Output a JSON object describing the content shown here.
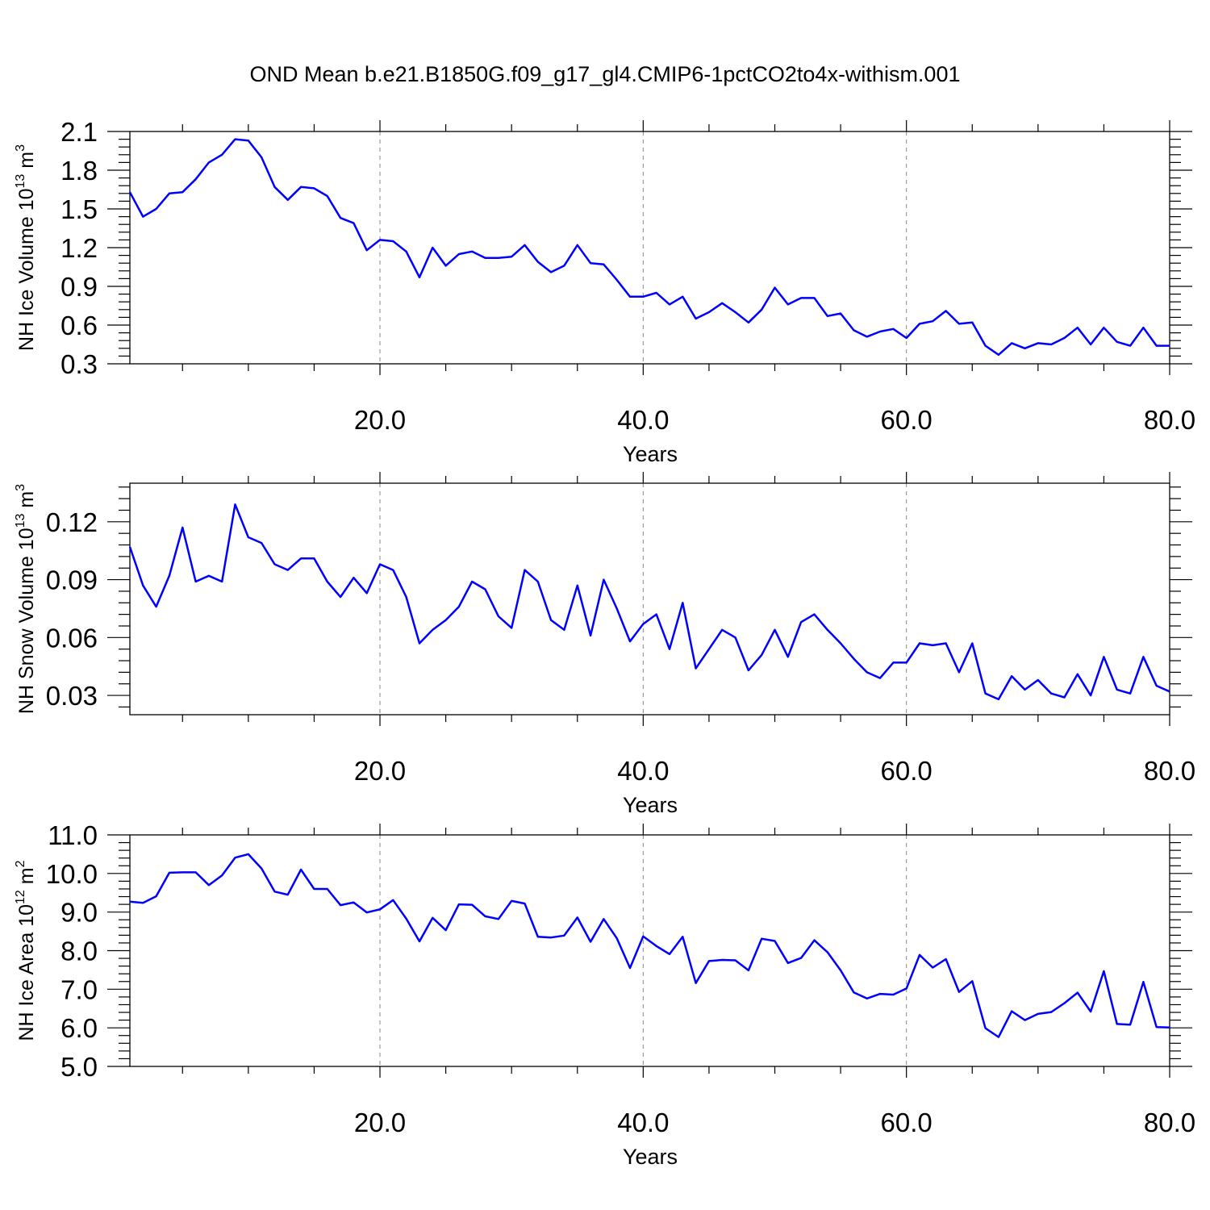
{
  "title": "OND Mean b.e21.B1850G.f09_g17_gl4.CMIP6-1pctCO2to4x-withism.001",
  "colors": {
    "series": "#0000ff",
    "grid": "#888888",
    "axis": "#000000"
  },
  "chart_data": [
    {
      "type": "line",
      "ylabel": {
        "prefix": "NH Ice Volume 10",
        "exp": "13",
        "unit": " m",
        "unit_exp": "3"
      },
      "xlabel": "Years",
      "xlim": [
        1,
        80
      ],
      "ylim": [
        0.3,
        2.1
      ],
      "x_ticks": [
        "20.0",
        "40.0",
        "60.0",
        "80.0"
      ],
      "y_ticks": [
        "0.3",
        "0.6",
        "0.9",
        "1.2",
        "1.5",
        "1.8",
        "2.1"
      ],
      "grid_x": true,
      "x": [
        1,
        2,
        3,
        4,
        5,
        6,
        7,
        8,
        9,
        10,
        11,
        12,
        13,
        14,
        15,
        16,
        17,
        18,
        19,
        20,
        21,
        22,
        23,
        24,
        25,
        26,
        27,
        28,
        29,
        30,
        31,
        32,
        33,
        34,
        35,
        36,
        37,
        38,
        39,
        40,
        41,
        42,
        43,
        44,
        45,
        46,
        47,
        48,
        49,
        50,
        51,
        52,
        53,
        54,
        55,
        56,
        57,
        58,
        59,
        60,
        61,
        62,
        63,
        64,
        65,
        66,
        67,
        68,
        69,
        70,
        71,
        72,
        73,
        74,
        75,
        76,
        77,
        78,
        79,
        80
      ],
      "values": [
        1.63,
        1.44,
        1.5,
        1.62,
        1.63,
        1.73,
        1.86,
        1.92,
        2.04,
        2.03,
        1.9,
        1.67,
        1.57,
        1.67,
        1.66,
        1.6,
        1.43,
        1.39,
        1.18,
        1.26,
        1.25,
        1.17,
        0.97,
        1.2,
        1.06,
        1.15,
        1.17,
        1.12,
        1.12,
        1.13,
        1.22,
        1.09,
        1.01,
        1.06,
        1.22,
        1.08,
        1.07,
        0.95,
        0.82,
        0.82,
        0.85,
        0.76,
        0.82,
        0.65,
        0.7,
        0.77,
        0.7,
        0.62,
        0.72,
        0.89,
        0.76,
        0.81,
        0.81,
        0.67,
        0.69,
        0.56,
        0.51,
        0.55,
        0.57,
        0.5,
        0.61,
        0.63,
        0.71,
        0.61,
        0.62,
        0.44,
        0.37,
        0.46,
        0.42,
        0.46,
        0.45,
        0.5,
        0.58,
        0.45,
        0.58,
        0.47,
        0.44,
        0.58,
        0.44,
        0.44
      ]
    },
    {
      "type": "line",
      "ylabel": {
        "prefix": "NH Snow Volume 10",
        "exp": "13",
        "unit": " m",
        "unit_exp": "3"
      },
      "xlabel": "Years",
      "xlim": [
        1,
        80
      ],
      "ylim": [
        0.02,
        0.14
      ],
      "y_tick_values": [
        0.03,
        0.06,
        0.09,
        0.12
      ],
      "y_ticks": [
        "0.03",
        "0.06",
        "0.09",
        "0.12"
      ],
      "x_ticks": [
        "20.0",
        "40.0",
        "60.0",
        "80.0"
      ],
      "grid_x": true,
      "x": [
        1,
        2,
        3,
        4,
        5,
        6,
        7,
        8,
        9,
        10,
        11,
        12,
        13,
        14,
        15,
        16,
        17,
        18,
        19,
        20,
        21,
        22,
        23,
        24,
        25,
        26,
        27,
        28,
        29,
        30,
        31,
        32,
        33,
        34,
        35,
        36,
        37,
        38,
        39,
        40,
        41,
        42,
        43,
        44,
        45,
        46,
        47,
        48,
        49,
        50,
        51,
        52,
        53,
        54,
        55,
        56,
        57,
        58,
        59,
        60,
        61,
        62,
        63,
        64,
        65,
        66,
        67,
        68,
        69,
        70,
        71,
        72,
        73,
        74,
        75,
        76,
        77,
        78,
        79,
        80
      ],
      "values": [
        0.107,
        0.087,
        0.076,
        0.092,
        0.117,
        0.089,
        0.092,
        0.089,
        0.129,
        0.112,
        0.109,
        0.098,
        0.095,
        0.101,
        0.101,
        0.089,
        0.081,
        0.091,
        0.083,
        0.098,
        0.095,
        0.081,
        0.057,
        0.064,
        0.069,
        0.076,
        0.089,
        0.085,
        0.071,
        0.065,
        0.095,
        0.089,
        0.069,
        0.064,
        0.087,
        0.061,
        0.09,
        0.075,
        0.058,
        0.067,
        0.072,
        0.054,
        0.078,
        0.044,
        0.054,
        0.064,
        0.06,
        0.043,
        0.051,
        0.064,
        0.05,
        0.068,
        0.072,
        0.064,
        0.057,
        0.049,
        0.042,
        0.039,
        0.047,
        0.047,
        0.057,
        0.056,
        0.057,
        0.042,
        0.057,
        0.031,
        0.028,
        0.04,
        0.033,
        0.038,
        0.031,
        0.029,
        0.041,
        0.03,
        0.05,
        0.033,
        0.031,
        0.05,
        0.035,
        0.032
      ]
    },
    {
      "type": "line",
      "ylabel": {
        "prefix": "NH Ice Area 10",
        "exp": "12",
        "unit": " m",
        "unit_exp": "2"
      },
      "xlabel": "Years",
      "xlim": [
        1,
        80
      ],
      "ylim": [
        5.0,
        11.0
      ],
      "y_ticks": [
        "5.0",
        "6.0",
        "7.0",
        "8.0",
        "9.0",
        "10.0",
        "11.0"
      ],
      "x_ticks": [
        "20.0",
        "40.0",
        "60.0",
        "80.0"
      ],
      "grid_x": true,
      "x": [
        1,
        2,
        3,
        4,
        5,
        6,
        7,
        8,
        9,
        10,
        11,
        12,
        13,
        14,
        15,
        16,
        17,
        18,
        19,
        20,
        21,
        22,
        23,
        24,
        25,
        26,
        27,
        28,
        29,
        30,
        31,
        32,
        33,
        34,
        35,
        36,
        37,
        38,
        39,
        40,
        41,
        42,
        43,
        44,
        45,
        46,
        47,
        48,
        49,
        50,
        51,
        52,
        53,
        54,
        55,
        56,
        57,
        58,
        59,
        60,
        61,
        62,
        63,
        64,
        65,
        66,
        67,
        68,
        69,
        70,
        71,
        72,
        73,
        74,
        75,
        76,
        77,
        78,
        79,
        80
      ],
      "values": [
        9.27,
        9.24,
        9.41,
        10.02,
        10.03,
        10.03,
        9.7,
        9.95,
        10.41,
        10.5,
        10.13,
        9.53,
        9.45,
        10.1,
        9.6,
        9.6,
        9.18,
        9.25,
        8.99,
        9.07,
        9.31,
        8.83,
        8.24,
        8.85,
        8.53,
        9.2,
        9.19,
        8.89,
        8.82,
        9.29,
        9.22,
        8.36,
        8.34,
        8.39,
        8.86,
        8.23,
        8.82,
        8.32,
        7.55,
        8.37,
        8.12,
        7.91,
        8.36,
        7.16,
        7.73,
        7.76,
        7.75,
        7.49,
        8.31,
        8.25,
        7.68,
        7.81,
        8.27,
        7.96,
        7.49,
        6.92,
        6.76,
        6.88,
        6.86,
        7.02,
        7.89,
        7.56,
        7.78,
        6.93,
        7.21,
        5.99,
        5.76,
        6.43,
        6.2,
        6.36,
        6.41,
        6.64,
        6.91,
        6.42,
        7.47,
        6.1,
        6.08,
        7.19,
        6.02,
        6.01
      ]
    }
  ]
}
